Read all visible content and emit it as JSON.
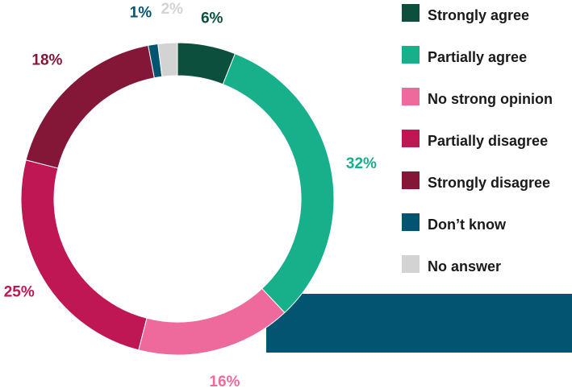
{
  "chart_data": {
    "type": "pie",
    "subtype": "donut",
    "start_angle_deg": 0,
    "direction": "clockwise",
    "legend_position": "right",
    "slices": [
      {
        "label": "Strongly agree",
        "value": 6,
        "value_label": "6%",
        "color": "#0b4f3c"
      },
      {
        "label": "Partially agree",
        "value": 32,
        "value_label": "32%",
        "color": "#17b08a"
      },
      {
        "label": "No strong opinion",
        "value": 16,
        "value_label": "16%",
        "color": "#ee6a9c"
      },
      {
        "label": "Partially disagree",
        "value": 25,
        "value_label": "25%",
        "color": "#bf1654"
      },
      {
        "label": "Strongly disagree",
        "value": 18,
        "value_label": "18%",
        "color": "#841638"
      },
      {
        "label": "Don’t know",
        "value": 1,
        "value_label": "1%",
        "color": "#035470"
      },
      {
        "label": "No answer",
        "value": 2,
        "value_label": "2%",
        "color": "#d3d3d3"
      }
    ]
  },
  "decor": {
    "bar_color": "#035470"
  }
}
